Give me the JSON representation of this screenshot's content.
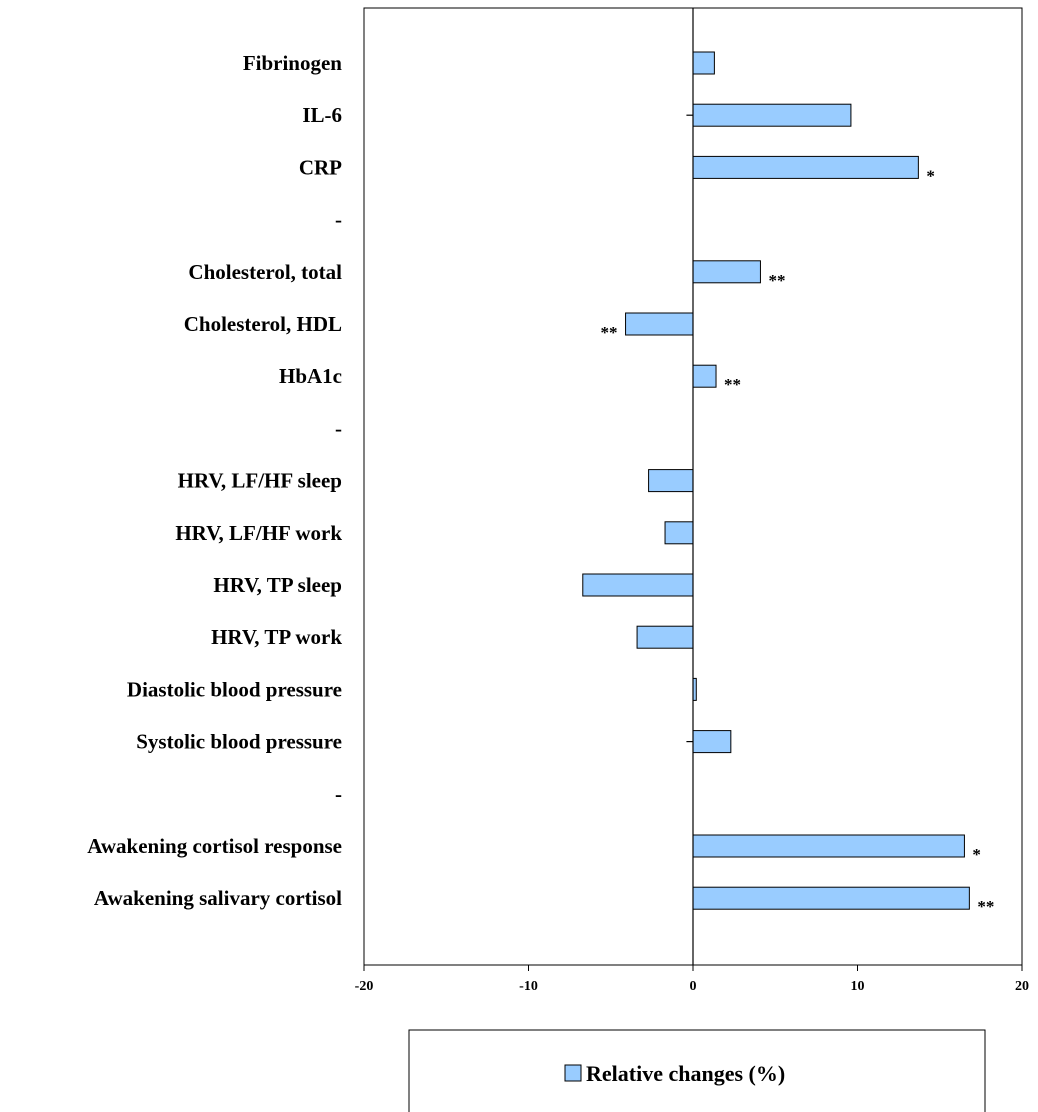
{
  "chart_data": {
    "type": "bar",
    "orientation": "horizontal",
    "categories": [
      "Fibrinogen",
      "IL-6",
      "CRP",
      "-",
      "Cholesterol, total",
      "Cholesterol, HDL",
      "HbA1c",
      "-",
      "HRV, LF/HF sleep",
      "HRV, LF/HF work",
      "HRV, TP sleep",
      "HRV, TP work",
      "Diastolic blood pressure",
      "Systolic blood pressure",
      "-",
      "Awakening cortisol response",
      "Awakening salivary cortisol"
    ],
    "series": [
      {
        "name": "Relative changes (%)",
        "values": [
          1.3,
          9.6,
          13.7,
          null,
          4.1,
          -4.1,
          1.4,
          null,
          -2.7,
          -1.7,
          -6.7,
          -3.4,
          0.2,
          2.3,
          null,
          16.5,
          16.8
        ],
        "color": "#99ccff"
      }
    ],
    "error_below": [
      null,
      0.4,
      null,
      null,
      null,
      null,
      null,
      null,
      null,
      null,
      null,
      null,
      null,
      0.4,
      null,
      null,
      null
    ],
    "significance": [
      "",
      "",
      "*",
      "",
      "**",
      "**",
      "**",
      "",
      "",
      "",
      "",
      "",
      "",
      "",
      "",
      "*",
      "**"
    ],
    "xlim": [
      -20,
      20
    ],
    "xticks": [
      "-20",
      "-10",
      "0",
      "10",
      "20"
    ],
    "grid": false,
    "legend": "bottom",
    "xlabel": "",
    "ylabel": "",
    "title": ""
  }
}
